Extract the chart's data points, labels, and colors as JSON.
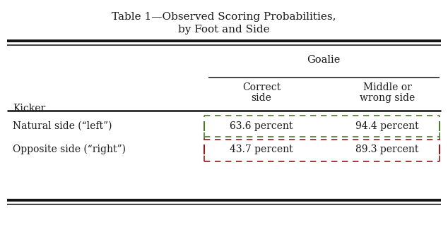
{
  "title_line1": "Table 1—Observed Scoring Probabilities,",
  "title_line2": "by Foot and Side",
  "col_header_span": "Goalie",
  "col1_header_line1": "Correct",
  "col1_header_line2": "side",
  "col2_header_line1": "Middle or",
  "col2_header_line2": "wrong side",
  "row_header": "Kicker",
  "row1_label": "Natural side (“left”)",
  "row2_label": "Opposite side (“right”)",
  "row1_col1": "63.6 percent",
  "row1_col2": "94.4 percent",
  "row2_col1": "43.7 percent",
  "row2_col2": "89.3 percent",
  "bg_color": "#ffffff",
  "text_color": "#1a1a1a",
  "green_dashed_color": "#4a7a2a",
  "red_dashed_color": "#8b1a1a",
  "title_fontsize": 11.0,
  "body_fontsize": 10.0,
  "line_color": "#111111"
}
